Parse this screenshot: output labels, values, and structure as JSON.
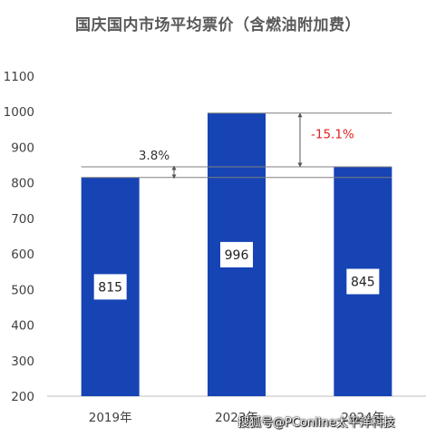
{
  "title": "国庆国内市场平均票价（含燃油附加费）",
  "chart_data": {
    "type": "bar",
    "title": "国庆国内市场平均票价（含燃油附加费）",
    "categories": [
      "2019年",
      "2023年",
      "2024年"
    ],
    "values": [
      815,
      996,
      845
    ],
    "value_labels": [
      "815",
      "996",
      "845"
    ],
    "ylim": [
      200,
      1100
    ],
    "yticks": [
      200,
      300,
      400,
      500,
      600,
      700,
      800,
      900,
      1000,
      1100
    ],
    "grid": false,
    "bar_color": "#1744B4",
    "annotations": [
      {
        "text": "3.8%",
        "from": 815,
        "to": 845,
        "color": "#333333"
      },
      {
        "text": "-15.1%",
        "from": 996,
        "to": 845,
        "color": "#E02020"
      }
    ]
  },
  "watermark": "搜狐号@PConline太平洋科技"
}
